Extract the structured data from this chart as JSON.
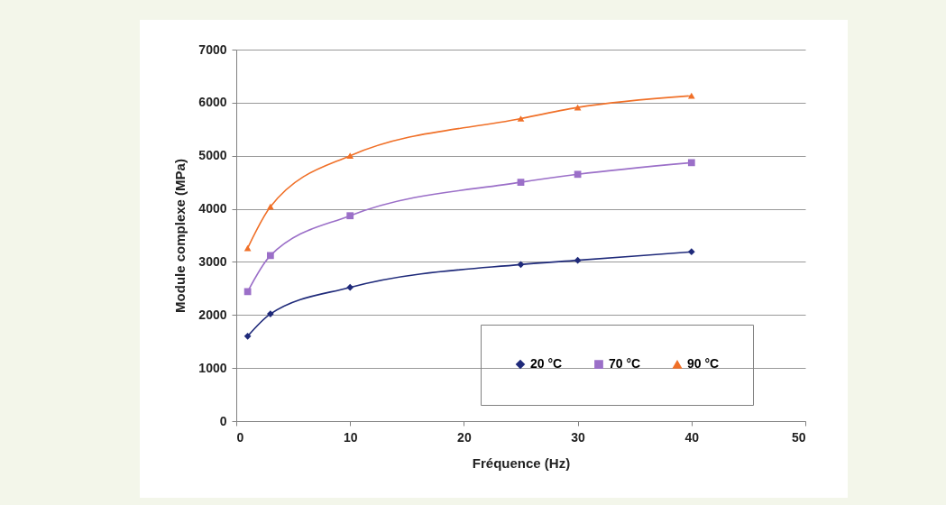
{
  "chart_data": {
    "type": "line",
    "xlabel": "Fréquence (Hz)",
    "ylabel": "Module complexe (MPa)",
    "x": [
      1,
      3,
      10,
      25,
      30,
      40
    ],
    "series": [
      {
        "name": "20 °C",
        "color": "#1f2a7a",
        "marker": "diamond",
        "values": [
          1600,
          2020,
          2520,
          2950,
          3030,
          3190
        ]
      },
      {
        "name": "70 °C",
        "color": "#9b6fc8",
        "marker": "square",
        "values": [
          2440,
          3120,
          3870,
          4500,
          4650,
          4870
        ]
      },
      {
        "name": "90 °C",
        "color": "#f07028",
        "marker": "triangle",
        "values": [
          3260,
          4040,
          5000,
          5700,
          5910,
          6130
        ]
      }
    ],
    "xlim": [
      0,
      50
    ],
    "xticks": [
      0,
      10,
      20,
      30,
      40,
      50
    ],
    "ylim": [
      0,
      7000
    ],
    "yticks": [
      0,
      1000,
      2000,
      3000,
      4000,
      5000,
      6000,
      7000
    ],
    "grid": "y",
    "legend": "bottom right"
  }
}
